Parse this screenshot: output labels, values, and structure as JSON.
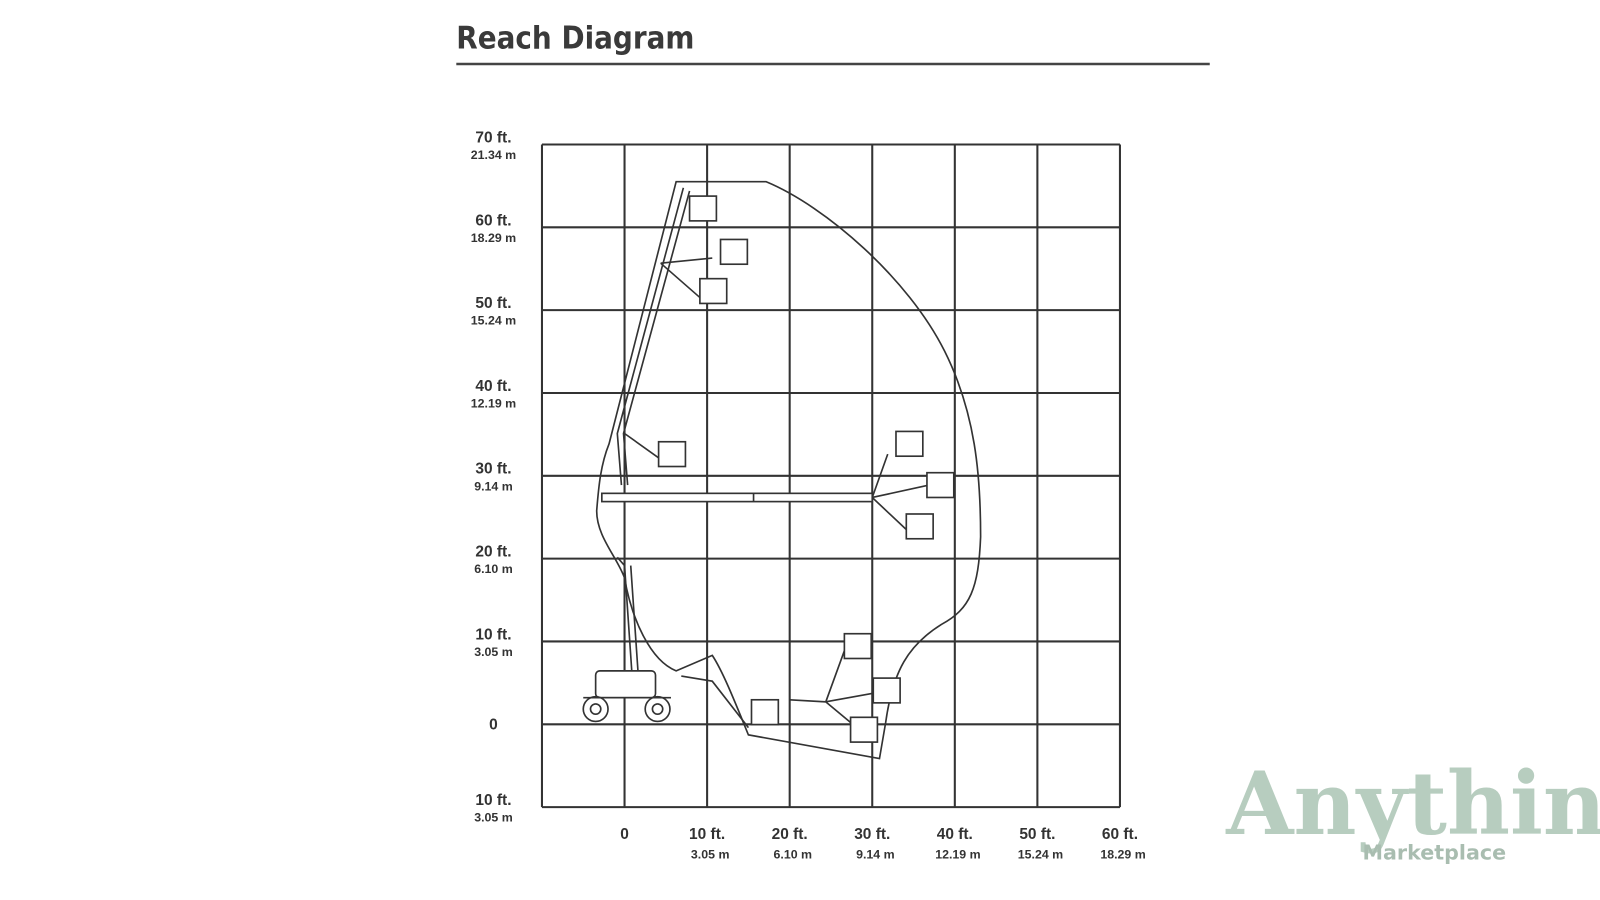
{
  "header": {
    "title": "Reach Diagram"
  },
  "y_axis": {
    "labels": [
      {
        "ft": "70 ft.",
        "m": "21.34 m"
      },
      {
        "ft": "60 ft.",
        "m": "18.29 m"
      },
      {
        "ft": "50 ft.",
        "m": "15.24 m"
      },
      {
        "ft": "40 ft.",
        "m": "12.19 m"
      },
      {
        "ft": "30 ft.",
        "m": "9.14 m"
      },
      {
        "ft": "20 ft.",
        "m": "6.10 m"
      },
      {
        "ft": "10 ft.",
        "m": "3.05 m"
      },
      {
        "ft": "0"
      },
      {
        "ft": "10 ft.",
        "m": "3.05 m"
      }
    ]
  },
  "x_axis": {
    "labels": [
      {
        "ft": "0"
      },
      {
        "ft": "10 ft.",
        "m": "3.05 m"
      },
      {
        "ft": "20 ft.",
        "m": "6.10 m"
      },
      {
        "ft": "30 ft.",
        "m": "9.14 m"
      },
      {
        "ft": "40 ft.",
        "m": "12.19 m"
      },
      {
        "ft": "50 ft.",
        "m": "15.24 m"
      },
      {
        "ft": "60 ft.",
        "m": "18.29 m"
      }
    ]
  },
  "watermark": {
    "brand": "Anything",
    "sub": "Marketplace"
  }
}
